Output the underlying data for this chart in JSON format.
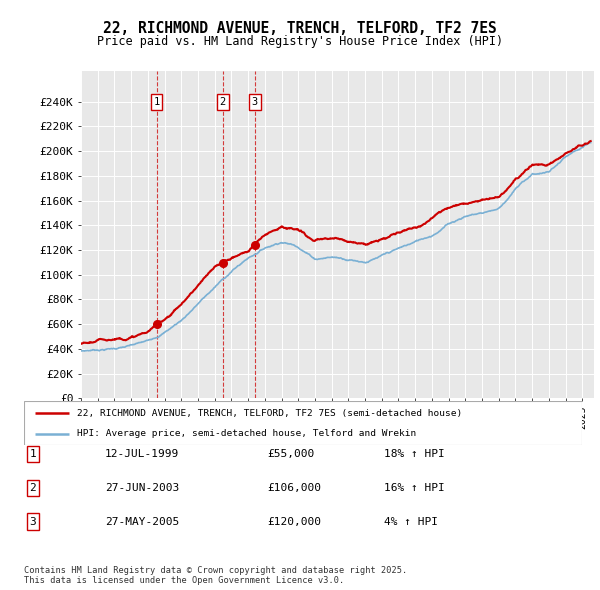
{
  "title": "22, RICHMOND AVENUE, TRENCH, TELFORD, TF2 7ES",
  "subtitle": "Price paid vs. HM Land Registry's House Price Index (HPI)",
  "bg_color": "#e8e8e8",
  "xmin": 1995,
  "xmax": 2025.7,
  "ymin": 0,
  "ymax": 265000,
  "yticks": [
    0,
    20000,
    40000,
    60000,
    80000,
    100000,
    120000,
    140000,
    160000,
    180000,
    200000,
    220000,
    240000
  ],
  "ytick_labels": [
    "£0",
    "£20K",
    "£40K",
    "£60K",
    "£80K",
    "£100K",
    "£120K",
    "£140K",
    "£160K",
    "£180K",
    "£200K",
    "£220K",
    "£240K"
  ],
  "transactions": [
    {
      "num": 1,
      "date": "12-JUL-1999",
      "price": 55000,
      "x": 1999.53,
      "hpi_pct": "18% ↑ HPI"
    },
    {
      "num": 2,
      "date": "27-JUN-2003",
      "price": 106000,
      "x": 2003.49,
      "hpi_pct": "16% ↑ HPI"
    },
    {
      "num": 3,
      "date": "27-MAY-2005",
      "price": 120000,
      "x": 2005.41,
      "hpi_pct": "4% ↑ HPI"
    }
  ],
  "legend_line1": "22, RICHMOND AVENUE, TRENCH, TELFORD, TF2 7ES (semi-detached house)",
  "legend_line2": "HPI: Average price, semi-detached house, Telford and Wrekin",
  "footer": "Contains HM Land Registry data © Crown copyright and database right 2025.\nThis data is licensed under the Open Government Licence v3.0.",
  "red_color": "#cc0000",
  "blue_color": "#7ab0d4"
}
